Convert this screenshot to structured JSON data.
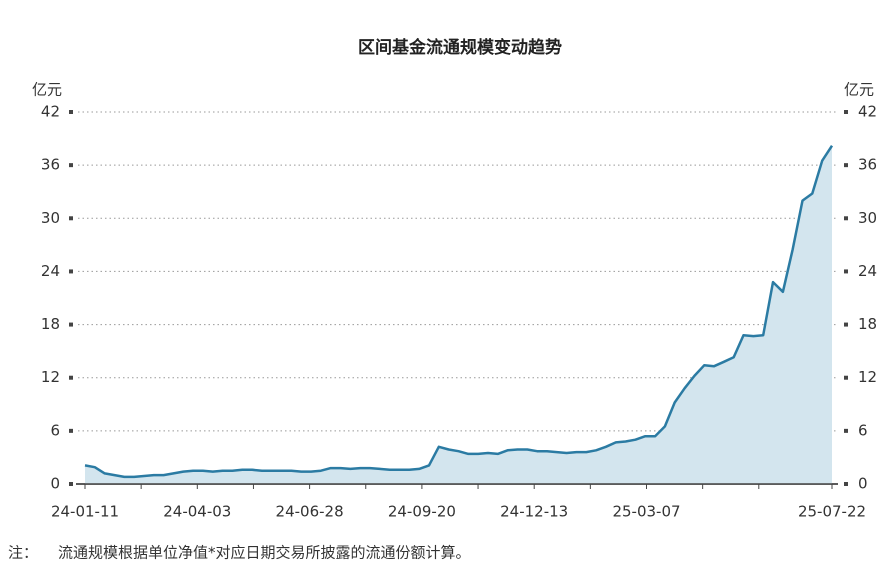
{
  "chart_data": {
    "type": "area",
    "title": "区间基金流通规模变动趋势",
    "y_unit": "亿元",
    "series": [
      {
        "color": "#2b7ba3",
        "fill": "#d3e5ee",
        "values": [
          2.1,
          1.9,
          1.2,
          1.0,
          0.8,
          0.8,
          0.9,
          1.0,
          1.0,
          1.2,
          1.4,
          1.5,
          1.5,
          1.4,
          1.5,
          1.5,
          1.6,
          1.6,
          1.5,
          1.5,
          1.5,
          1.5,
          1.4,
          1.4,
          1.5,
          1.8,
          1.8,
          1.7,
          1.8,
          1.8,
          1.7,
          1.6,
          1.6,
          1.6,
          1.7,
          2.1,
          4.2,
          3.9,
          3.7,
          3.4,
          3.4,
          3.5,
          3.4,
          3.8,
          3.9,
          3.9,
          3.7,
          3.7,
          3.6,
          3.5,
          3.6,
          3.6,
          3.8,
          4.2,
          4.7,
          4.8,
          5.0,
          5.4,
          5.4,
          6.5,
          9.2,
          10.8,
          12.2,
          13.4,
          13.3,
          13.8,
          14.3,
          16.8,
          16.7,
          16.8,
          22.8,
          21.7,
          26.5,
          32.0,
          32.8,
          36.5,
          38.2
        ]
      }
    ],
    "x_axis_labels": [
      "24-01-11",
      null,
      "24-04-03",
      null,
      "24-06-28",
      null,
      "24-09-20",
      null,
      "24-12-13",
      null,
      "25-03-07",
      null,
      null,
      "25-07-22"
    ],
    "ylim": [
      0,
      42
    ],
    "yticks": [
      0,
      6,
      12,
      18,
      24,
      30,
      36,
      42
    ],
    "grid": true,
    "note_label": "注：",
    "note": "流通规模根据单位净值*对应日期交易所披露的流通份额计算。"
  }
}
